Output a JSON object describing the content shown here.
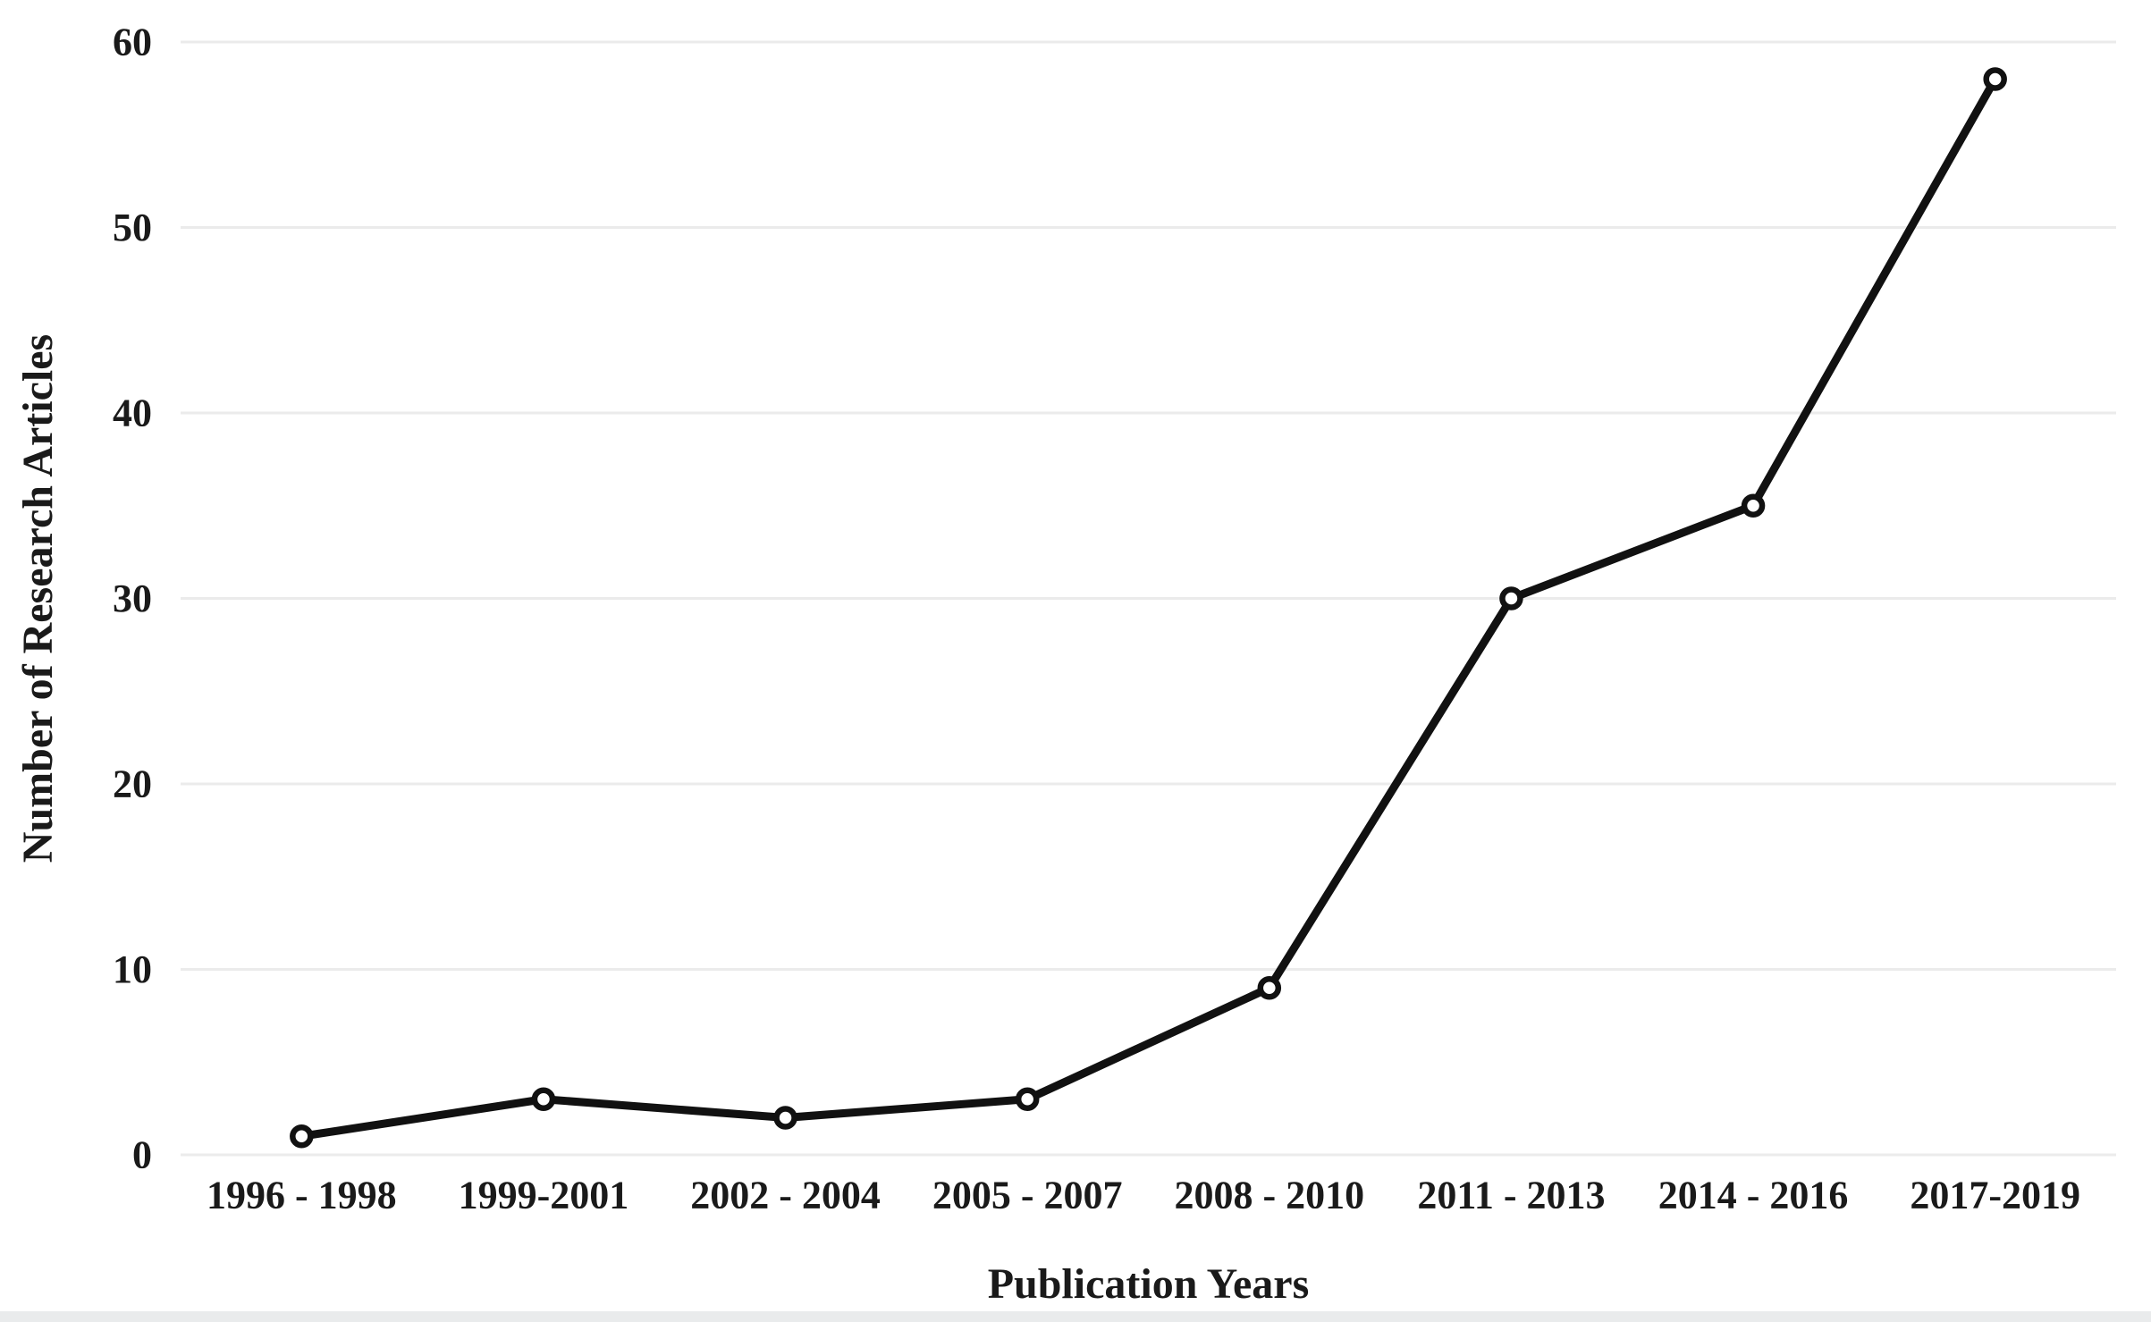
{
  "chart_data": {
    "type": "line",
    "title": "",
    "xlabel": "Publication Years",
    "ylabel": "Number of Research Articles",
    "categories": [
      "1996 - 1998",
      "1999-2001",
      "2002 - 2004",
      "2005 - 2007",
      "2008 - 2010",
      "2011 - 2013",
      "2014 - 2016",
      "2017-2019"
    ],
    "series": [
      {
        "name": "Number of Research Articles",
        "values": [
          1,
          3,
          2,
          3,
          9,
          30,
          35,
          58
        ]
      }
    ],
    "ylim": [
      0,
      60
    ],
    "y_ticks": [
      0,
      10,
      20,
      30,
      40,
      50,
      60
    ],
    "grid": "horizontal",
    "legend_position": "none",
    "marker_shape": "open-circle",
    "colors": {
      "line": "#111111",
      "marker_fill": "#ffffff",
      "marker_stroke": "#111111",
      "gridline": "#ebebeb",
      "text": "#1a1a1a",
      "background": "#ffffff",
      "bottom_strip": "#e9ebec"
    }
  }
}
